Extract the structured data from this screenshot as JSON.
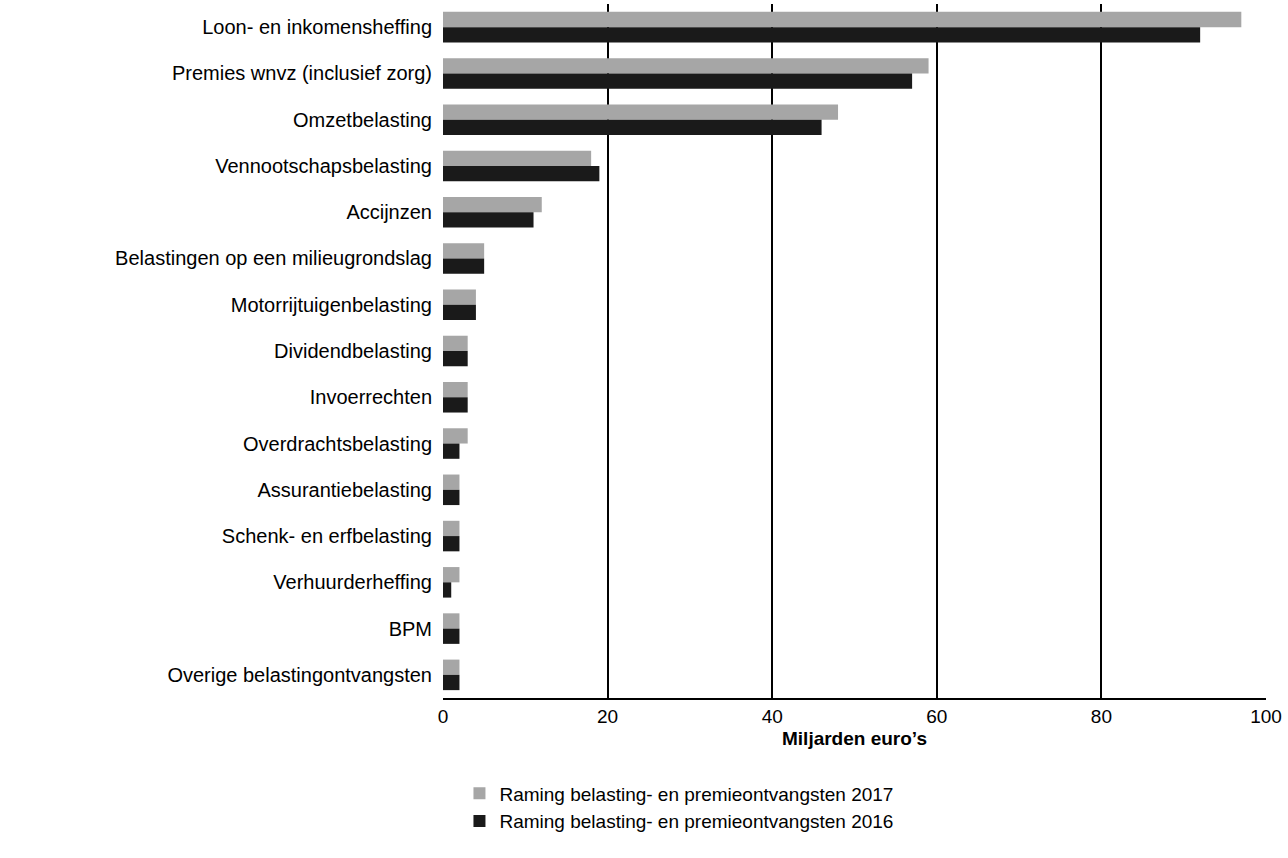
{
  "chart_data": {
    "type": "bar",
    "orientation": "horizontal",
    "categories": [
      "Loon- en inkomensheffing",
      "Premies wnvz (inclusief zorg)",
      "Omzetbelasting",
      "Vennootschapsbelasting",
      "Accijnzen",
      "Belastingen op een milieugrondslag",
      "Motorrijtuigenbelasting",
      "Dividendbelasting",
      "Invoerrechten",
      "Overdrachtsbelasting",
      "Assurantiebelasting",
      "Schenk- en erfbelasting",
      "Verhuurderheffing",
      "BPM",
      "Overige belastingontvangsten"
    ],
    "series": [
      {
        "name": "Raming belasting- en premieontvangsten 2017",
        "color": "#a6a6a6",
        "values": [
          97,
          59,
          48,
          18,
          12,
          5,
          4,
          3,
          3,
          3,
          2,
          2,
          2,
          2,
          2
        ]
      },
      {
        "name": "Raming belasting- en premieontvangsten 2016",
        "color": "#1a1a1a",
        "values": [
          92,
          57,
          46,
          19,
          11,
          5,
          4,
          3,
          3,
          2,
          2,
          2,
          1,
          2,
          2
        ]
      }
    ],
    "xlabel": "Miljarden euro’s",
    "xlim": [
      0,
      100
    ],
    "xticks": [
      0,
      20,
      40,
      60,
      80,
      100
    ],
    "grid": true,
    "legend": "bottom"
  }
}
